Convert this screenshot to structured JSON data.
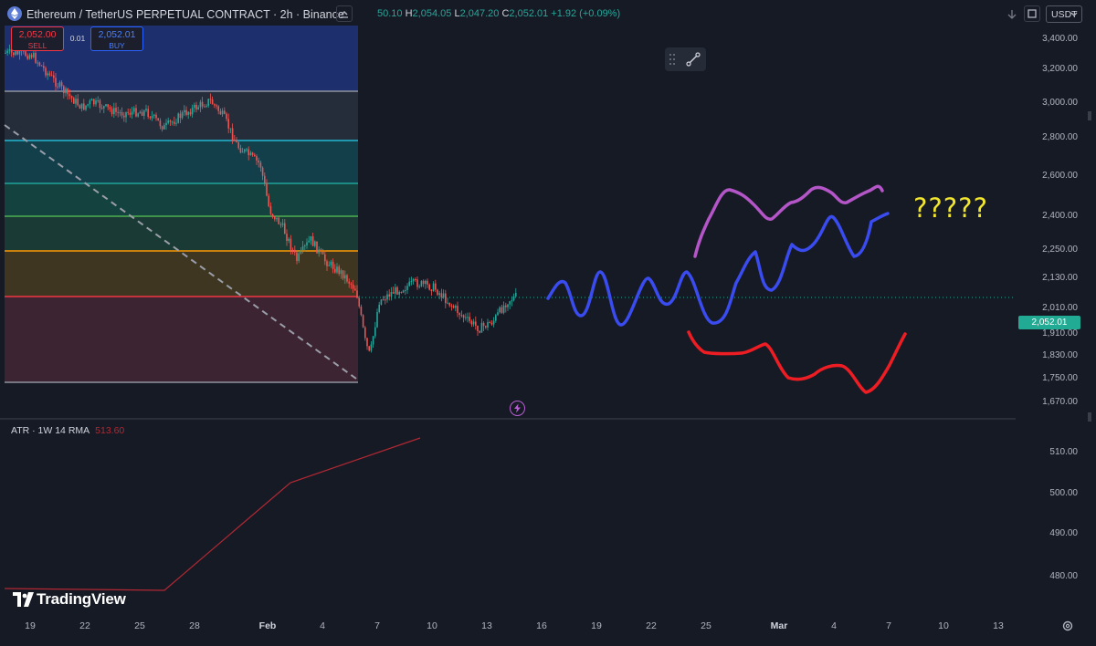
{
  "header": {
    "symbol_title": "Ethereum / TetherUS PERPETUAL CONTRACT · 2h · Binance",
    "ohlc_prefix": "50.10",
    "high_key": "H",
    "high": "2,054.05",
    "low_key": "L",
    "low": "2,047.20",
    "close_key": "C",
    "close": "2,052.01",
    "change": "+1.92 (+0.09%)",
    "currency": "USDT"
  },
  "trade": {
    "sell_price": "2,052.00",
    "sell_label": "SELL",
    "spread": "0.01",
    "buy_price": "2,052.01",
    "buy_label": "BUY"
  },
  "price_axis": {
    "ticks": [
      "3,400.00",
      "3,200.00",
      "3,000.00",
      "2,800.00",
      "2,600.00",
      "2,400.00",
      "2,250.00",
      "2,130.00",
      "2,010.00",
      "1,910.00",
      "1,830.00",
      "1,750.00",
      "1,670.00"
    ],
    "current_price": "2,052.01"
  },
  "indicator": {
    "name": "ATR · 1W 14 RMA",
    "value": "513.60",
    "ticks": [
      "510.00",
      "500.00",
      "490.00",
      "480.00"
    ]
  },
  "time_axis": {
    "labels": [
      "19",
      "22",
      "25",
      "28",
      "Feb",
      "4",
      "7",
      "10",
      "13",
      "16",
      "19",
      "22",
      "25",
      "Mar",
      "4",
      "7",
      "10",
      "13"
    ]
  },
  "annotation": {
    "text": "?????"
  },
  "brand": {
    "logo_text": "TradingView"
  },
  "colors": {
    "background": "#161a25",
    "up": "#26a69a",
    "down": "#ef5350",
    "current_price_tag": "#22ab94",
    "drawing_blue": "#3a4cf0",
    "drawing_purple": "#b455c8",
    "drawing_red": "#ee1d24",
    "question_yellow": "#f2e62f",
    "atr_line": "#b22833"
  }
}
